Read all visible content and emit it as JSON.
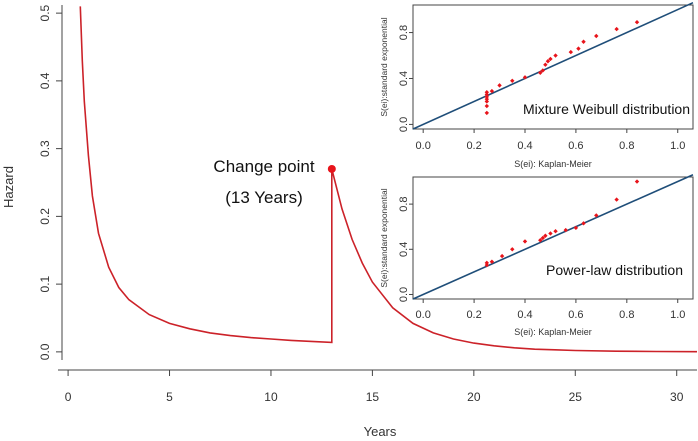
{
  "chart_data": [
    {
      "type": "line",
      "title": "",
      "xlabel": "Years",
      "ylabel": "Hazard",
      "xlim": [
        -0.3,
        31
      ],
      "ylim": [
        -0.012,
        0.512
      ],
      "xticks": [
        0,
        5,
        10,
        15,
        20,
        25,
        30
      ],
      "xtick_labels": [
        "0",
        "5",
        "10",
        "15",
        "20",
        "25",
        "30"
      ],
      "yticks": [
        0.0,
        0.1,
        0.2,
        0.3,
        0.4,
        0.5
      ],
      "ytick_labels": [
        "0.0",
        "0.1",
        "0.2",
        "0.3",
        "0.4",
        "0.5"
      ],
      "series": [
        {
          "name": "Hazard",
          "color": "#cc2229",
          "x": [
            0.6,
            0.7,
            0.8,
            1.0,
            1.2,
            1.5,
            2.0,
            2.5,
            3.0,
            4.0,
            5.0,
            6.0,
            7.0,
            8.0,
            9.0,
            10.0,
            11.0,
            12.0,
            13.0,
            13.0,
            13.5,
            14.0,
            14.5,
            15.0,
            16.0,
            17.0,
            18.0,
            19.0,
            20.0,
            21.0,
            22.0,
            23.0,
            24.0,
            25.0,
            27.0,
            29.0,
            31.0
          ],
          "y": [
            0.51,
            0.43,
            0.37,
            0.29,
            0.23,
            0.175,
            0.125,
            0.095,
            0.077,
            0.055,
            0.042,
            0.034,
            0.028,
            0.024,
            0.021,
            0.019,
            0.017,
            0.0155,
            0.014,
            0.27,
            0.211,
            0.166,
            0.131,
            0.103,
            0.065,
            0.042,
            0.028,
            0.019,
            0.013,
            0.009,
            0.006,
            0.004,
            0.003,
            0.002,
            0.001,
            0.0005,
            0.0002
          ]
        }
      ],
      "annotations": [
        {
          "point": [
            13,
            0.27
          ],
          "color": "#e8141b",
          "label_line1": "Change point",
          "label_line2": "(13 Years)"
        }
      ]
    },
    {
      "type": "scatter",
      "title": "Mixture Weibull distribution",
      "xlabel": "S(ei): Kaplan-Meier",
      "ylabel": "S(ei):standard exponential",
      "xlim": [
        -0.04,
        1.06
      ],
      "ylim": [
        -0.04,
        1.04
      ],
      "xticks": [
        0.0,
        0.2,
        0.4,
        0.6,
        0.8,
        1.0
      ],
      "xtick_labels": [
        "0.0",
        "0.2",
        "0.4",
        "0.6",
        "0.8",
        "1.0"
      ],
      "yticks": [
        0.0,
        0.4,
        0.8
      ],
      "ytick_labels": [
        "0.0",
        "0.4",
        "0.8"
      ],
      "reference_line": {
        "color": "#1f4e79",
        "x": [
          -0.04,
          1.06
        ],
        "y": [
          -0.04,
          1.06
        ]
      },
      "points_color": "#e8141b",
      "x": [
        0.25,
        0.25,
        0.25,
        0.25,
        0.25,
        0.25,
        0.25,
        0.27,
        0.3,
        0.35,
        0.4,
        0.46,
        0.47,
        0.48,
        0.49,
        0.5,
        0.52,
        0.58,
        0.61,
        0.63,
        0.68,
        0.76,
        0.84
      ],
      "y": [
        0.1,
        0.16,
        0.2,
        0.22,
        0.24,
        0.26,
        0.28,
        0.29,
        0.34,
        0.38,
        0.41,
        0.45,
        0.47,
        0.52,
        0.55,
        0.57,
        0.6,
        0.63,
        0.66,
        0.72,
        0.77,
        0.83,
        0.89
      ]
    },
    {
      "type": "scatter",
      "title": "Power-law distribution",
      "xlabel": "S(ei): Kaplan-Meier",
      "ylabel": "S(ei):standard exponential",
      "xlim": [
        -0.04,
        1.06
      ],
      "ylim": [
        -0.04,
        1.04
      ],
      "xticks": [
        0.0,
        0.2,
        0.4,
        0.6,
        0.8,
        1.0
      ],
      "xtick_labels": [
        "0.0",
        "0.2",
        "0.4",
        "0.6",
        "0.8",
        "1.0"
      ],
      "yticks": [
        0.0,
        0.4,
        0.8
      ],
      "ytick_labels": [
        "0.0",
        "0.4",
        "0.8"
      ],
      "reference_line": {
        "color": "#1f4e79",
        "x": [
          -0.04,
          1.06
        ],
        "y": [
          -0.04,
          1.06
        ]
      },
      "points_color": "#e8141b",
      "x": [
        0.25,
        0.25,
        0.27,
        0.31,
        0.35,
        0.4,
        0.46,
        0.47,
        0.48,
        0.5,
        0.52,
        0.56,
        0.6,
        0.63,
        0.68,
        0.76,
        0.84
      ],
      "y": [
        0.26,
        0.28,
        0.29,
        0.34,
        0.4,
        0.47,
        0.48,
        0.5,
        0.52,
        0.54,
        0.56,
        0.57,
        0.59,
        0.63,
        0.7,
        0.84,
        1.0
      ]
    }
  ]
}
